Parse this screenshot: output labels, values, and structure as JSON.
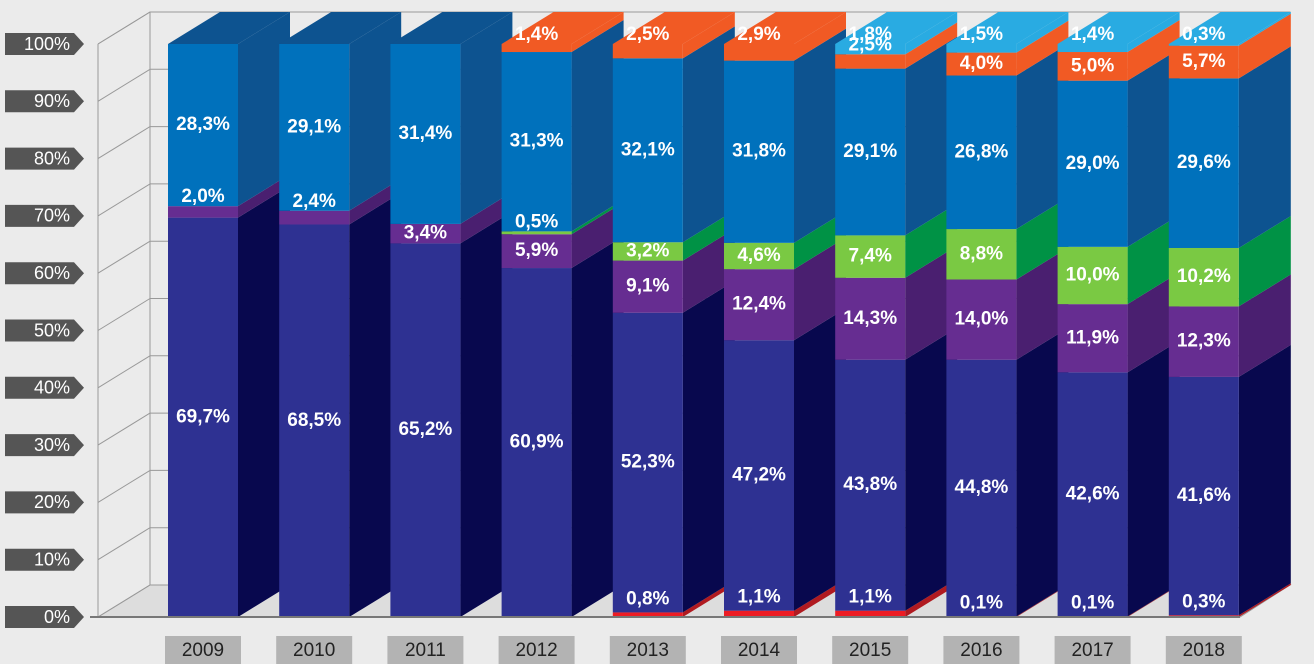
{
  "chart_data": {
    "type": "bar3d_stacked",
    "categories": [
      "2009",
      "2010",
      "2011",
      "2012",
      "2013",
      "2014",
      "2015",
      "2016",
      "2017",
      "2018"
    ],
    "series": [
      {
        "color": "#ed1c24",
        "side": "#b01a20",
        "values": [
          null,
          null,
          null,
          null,
          0.8,
          1.1,
          1.1,
          0.1,
          0.1,
          0.3
        ],
        "value_labels": [
          null,
          null,
          null,
          null,
          "0,8%",
          "1,1%",
          "1,1%",
          "0,1%",
          "0,1%",
          "0,3%"
        ]
      },
      {
        "color": "#2e3192",
        "side": "#08084e",
        "values": [
          69.7,
          68.5,
          65.2,
          60.9,
          52.3,
          47.2,
          43.8,
          44.8,
          42.6,
          41.6
        ],
        "value_labels": [
          "69,7%",
          "68,5%",
          "65,2%",
          "60,9%",
          "52,3%",
          "47,2%",
          "43,8%",
          "44,8%",
          "42,6%",
          "41,6%"
        ]
      },
      {
        "color": "#662d91",
        "side": "#4a1f70",
        "values": [
          2.0,
          2.4,
          3.4,
          5.9,
          9.1,
          12.4,
          14.3,
          14.0,
          11.9,
          12.3
        ],
        "value_labels": [
          "2,0%",
          "2,4%",
          "3,4%",
          "5,9%",
          "9,1%",
          "12,4%",
          "14,3%",
          "14,0%",
          "11,9%",
          "12,3%"
        ]
      },
      {
        "color": "#7ac943",
        "side": "#009245",
        "values": [
          null,
          null,
          null,
          0.5,
          3.2,
          4.6,
          7.4,
          8.8,
          10.0,
          10.2
        ],
        "value_labels": [
          null,
          null,
          null,
          "0,5%",
          "3,2%",
          "4,6%",
          "7,4%",
          "8,8%",
          "10,0%",
          "10,2%"
        ]
      },
      {
        "color": "#0071bc",
        "side": "#0d5390",
        "values": [
          28.3,
          29.1,
          31.4,
          31.3,
          32.1,
          31.8,
          29.1,
          26.8,
          29.0,
          29.6
        ],
        "value_labels": [
          "28,3%",
          "29,1%",
          "31,4%",
          "31,3%",
          "32,1%",
          "31,8%",
          "29,1%",
          "26,8%",
          "29,0%",
          "29,6%"
        ]
      },
      {
        "color": "#f15a24",
        "side": "#f15a24",
        "values": [
          null,
          null,
          null,
          1.4,
          2.5,
          2.9,
          2.5,
          4.0,
          5.0,
          5.7
        ],
        "value_labels": [
          null,
          null,
          null,
          "1,4%",
          "2,5%",
          "2,9%",
          "2,5%",
          "4,0%",
          "5,0%",
          "5,7%"
        ]
      },
      {
        "color": "#29abe2",
        "side": "#29abe2",
        "values": [
          null,
          null,
          null,
          null,
          null,
          null,
          1.8,
          1.5,
          1.4,
          0.3
        ],
        "value_labels": [
          null,
          null,
          null,
          null,
          null,
          null,
          "1,8%",
          "1,5%",
          "1,4%",
          "0,3%"
        ]
      }
    ],
    "ylim": [
      0,
      100
    ],
    "yticks": [
      {
        "value": 0,
        "label": "0%"
      },
      {
        "value": 10,
        "label": "10%"
      },
      {
        "value": 20,
        "label": "20%"
      },
      {
        "value": 30,
        "label": "30%"
      },
      {
        "value": 40,
        "label": "40%"
      },
      {
        "value": 50,
        "label": "50%"
      },
      {
        "value": 60,
        "label": "60%"
      },
      {
        "value": 70,
        "label": "70%"
      },
      {
        "value": 80,
        "label": "80%"
      },
      {
        "value": 90,
        "label": "90%"
      },
      {
        "value": 100,
        "label": "100%"
      }
    ],
    "grid": true
  }
}
